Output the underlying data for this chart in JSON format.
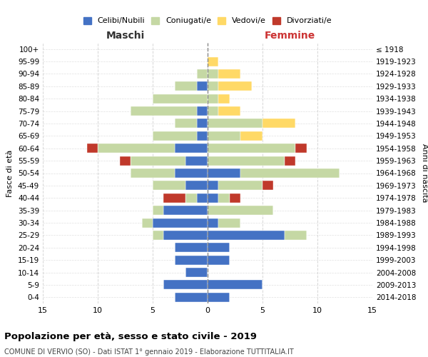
{
  "age_groups": [
    "100+",
    "95-99",
    "90-94",
    "85-89",
    "80-84",
    "75-79",
    "70-74",
    "65-69",
    "60-64",
    "55-59",
    "50-54",
    "45-49",
    "40-44",
    "35-39",
    "30-34",
    "25-29",
    "20-24",
    "15-19",
    "10-14",
    "5-9",
    "0-4"
  ],
  "birth_years": [
    "≤ 1918",
    "1919-1923",
    "1924-1928",
    "1929-1933",
    "1934-1938",
    "1939-1943",
    "1944-1948",
    "1949-1953",
    "1954-1958",
    "1959-1963",
    "1964-1968",
    "1969-1973",
    "1974-1978",
    "1979-1983",
    "1984-1988",
    "1989-1993",
    "1994-1998",
    "1999-2003",
    "2004-2008",
    "2009-2013",
    "2014-2018"
  ],
  "maschi": {
    "celibi": [
      0,
      0,
      0,
      1,
      0,
      1,
      1,
      1,
      3,
      2,
      3,
      2,
      1,
      4,
      5,
      4,
      3,
      3,
      2,
      4,
      3
    ],
    "coniugati": [
      0,
      0,
      1,
      2,
      5,
      6,
      2,
      4,
      7,
      5,
      4,
      3,
      1,
      1,
      1,
      1,
      0,
      0,
      0,
      0,
      0
    ],
    "vedovi": [
      0,
      0,
      0,
      0,
      0,
      0,
      0,
      0,
      0,
      0,
      0,
      0,
      0,
      0,
      0,
      0,
      0,
      0,
      0,
      0,
      0
    ],
    "divorziati": [
      0,
      0,
      0,
      0,
      0,
      0,
      0,
      0,
      1,
      1,
      0,
      0,
      2,
      0,
      0,
      0,
      0,
      0,
      0,
      0,
      0
    ]
  },
  "femmine": {
    "nubili": [
      0,
      0,
      0,
      0,
      0,
      0,
      0,
      0,
      0,
      0,
      3,
      1,
      1,
      0,
      1,
      7,
      2,
      2,
      0,
      5,
      2
    ],
    "coniugate": [
      0,
      0,
      1,
      1,
      1,
      1,
      5,
      3,
      8,
      7,
      9,
      4,
      1,
      6,
      2,
      2,
      0,
      0,
      0,
      0,
      0
    ],
    "vedove": [
      0,
      1,
      2,
      3,
      1,
      2,
      3,
      2,
      0,
      0,
      0,
      0,
      0,
      0,
      0,
      0,
      0,
      0,
      0,
      0,
      0
    ],
    "divorziate": [
      0,
      0,
      0,
      0,
      0,
      0,
      0,
      0,
      1,
      1,
      0,
      1,
      1,
      0,
      0,
      0,
      0,
      0,
      0,
      0,
      0
    ]
  },
  "colors": {
    "celibi_nubili": "#4472C4",
    "coniugati_e": "#C5D8A4",
    "vedovi_e": "#FFD966",
    "divorziati_e": "#C0392B"
  },
  "xlim": 15,
  "title": "Popolazione per età, sesso e stato civile - 2019",
  "subtitle": "COMUNE DI VERVIO (SO) - Dati ISTAT 1° gennaio 2019 - Elaborazione TUTTITALIA.IT",
  "ylabel_left": "Fasce di età",
  "ylabel_right": "Anni di nascita",
  "xlabel_maschi": "Maschi",
  "xlabel_femmine": "Femmine",
  "bg_color": "#FFFFFF",
  "grid_color": "#CCCCCC"
}
